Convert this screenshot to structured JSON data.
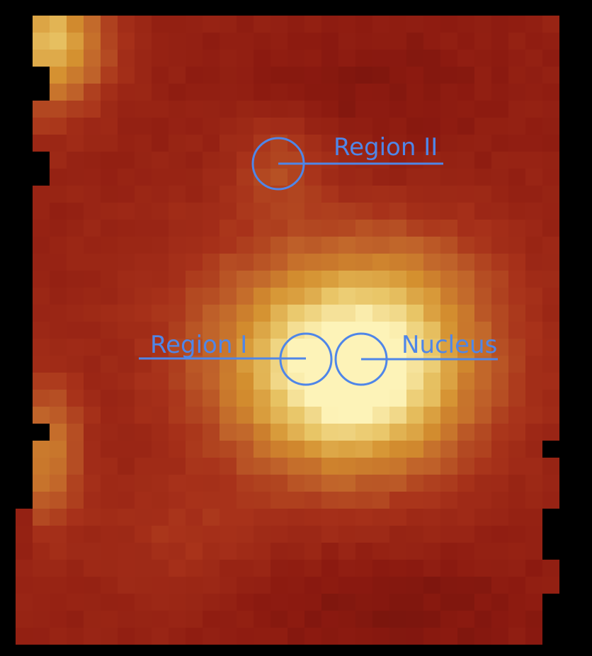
{
  "image": {
    "background": "#000000",
    "colormap": [
      "#5a0c08",
      "#8c1a10",
      "#a8321a",
      "#c0632a",
      "#d4902f",
      "#e8c465",
      "#fdf3b8"
    ],
    "annotation_color": "#4f86e8"
  },
  "annotations": {
    "region_ii": {
      "label": "Region II"
    },
    "region_i": {
      "label": "Region I"
    },
    "nucleus": {
      "label": "Nucleus"
    }
  }
}
